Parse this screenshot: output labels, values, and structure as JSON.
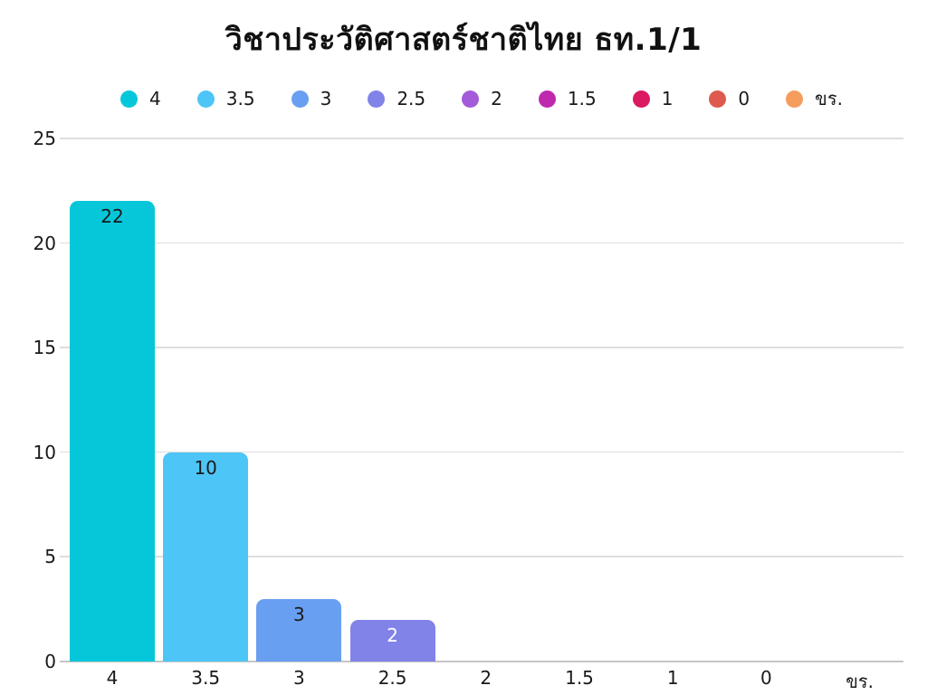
{
  "chart_data": {
    "type": "bar",
    "title": "วิชาประวัติศาสตร์ชาติไทย ธท.1/1",
    "categories": [
      "4",
      "3.5",
      "3",
      "2.5",
      "2",
      "1.5",
      "1",
      "0",
      "ขร."
    ],
    "values": [
      22,
      10,
      3,
      2,
      0,
      0,
      0,
      0,
      0
    ],
    "colors": [
      "#06C7DA",
      "#4EC5F7",
      "#699FF1",
      "#8183E9",
      "#A35BD9",
      "#BE29AE",
      "#DA1A61",
      "#DE5A4E",
      "#F59D5C"
    ],
    "value_label_colors": [
      "#1A1A1A",
      "#1A1A1A",
      "#1A1A1A",
      "#FFFFFF",
      "#1A1A1A",
      "#1A1A1A",
      "#FFFFFF",
      "#FFFFFF",
      "#1A1A1A"
    ],
    "xlabel": "",
    "ylabel": "",
    "ylim": [
      0,
      25
    ],
    "y_ticks": [
      0,
      5,
      10,
      15,
      20,
      25
    ],
    "grid": "horizontal-only",
    "legend_position": "top",
    "legend_entries": [
      "4",
      "3.5",
      "3",
      "2.5",
      "2",
      "1.5",
      "1",
      "0",
      "ขร."
    ],
    "background_color": "#FFFFFF",
    "gridline_color": "#DEDEDE",
    "axis_line_color": "#C6C6C6",
    "text_color": "#1A1A1A"
  }
}
